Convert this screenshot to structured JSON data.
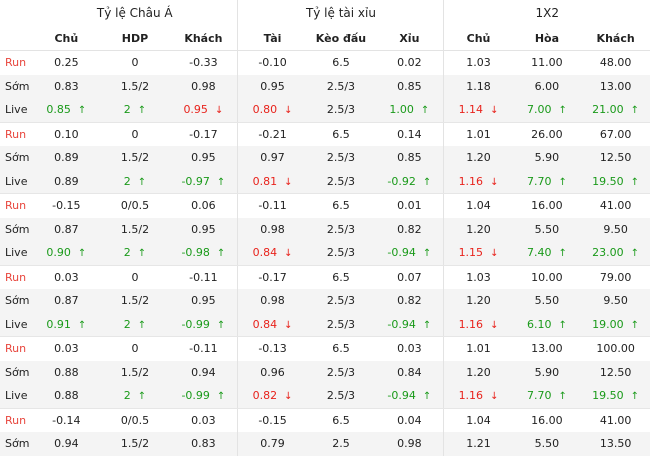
{
  "groups": [
    "Tỷ lệ Châu Á",
    "Tỷ lệ tài xỉu",
    "1X2"
  ],
  "columns": [
    "Chủ",
    "HDP",
    "Khách",
    "Tài",
    "Kèo đấu",
    "Xỉu",
    "Chủ",
    "Hòa",
    "Khách"
  ],
  "rows": [
    {
      "label": "Run",
      "type": "run",
      "cells": [
        {
          "v": "0.25"
        },
        {
          "v": "0"
        },
        {
          "v": "-0.33"
        },
        {
          "v": "-0.10"
        },
        {
          "v": "6.5"
        },
        {
          "v": "0.02"
        },
        {
          "v": "1.03"
        },
        {
          "v": "11.00"
        },
        {
          "v": "48.00"
        }
      ]
    },
    {
      "label": "Sớm",
      "type": "early",
      "cells": [
        {
          "v": "0.83"
        },
        {
          "v": "1.5/2"
        },
        {
          "v": "0.98"
        },
        {
          "v": "0.95"
        },
        {
          "v": "2.5/3"
        },
        {
          "v": "0.85"
        },
        {
          "v": "1.18"
        },
        {
          "v": "6.00"
        },
        {
          "v": "13.00"
        }
      ]
    },
    {
      "label": "Live",
      "type": "live",
      "cells": [
        {
          "v": "0.85",
          "t": "up"
        },
        {
          "v": "2",
          "t": "up"
        },
        {
          "v": "0.95",
          "t": "down"
        },
        {
          "v": "0.80",
          "t": "down"
        },
        {
          "v": "2.5/3"
        },
        {
          "v": "1.00",
          "t": "up"
        },
        {
          "v": "1.14",
          "t": "down"
        },
        {
          "v": "7.00",
          "t": "up"
        },
        {
          "v": "21.00",
          "t": "up"
        }
      ]
    },
    {
      "label": "Run",
      "type": "run",
      "cells": [
        {
          "v": "0.10"
        },
        {
          "v": "0"
        },
        {
          "v": "-0.17"
        },
        {
          "v": "-0.21"
        },
        {
          "v": "6.5"
        },
        {
          "v": "0.14"
        },
        {
          "v": "1.01"
        },
        {
          "v": "26.00"
        },
        {
          "v": "67.00"
        }
      ]
    },
    {
      "label": "Sớm",
      "type": "early",
      "cells": [
        {
          "v": "0.89"
        },
        {
          "v": "1.5/2"
        },
        {
          "v": "0.95"
        },
        {
          "v": "0.97"
        },
        {
          "v": "2.5/3"
        },
        {
          "v": "0.85"
        },
        {
          "v": "1.20"
        },
        {
          "v": "5.90"
        },
        {
          "v": "12.50"
        }
      ]
    },
    {
      "label": "Live",
      "type": "live",
      "cells": [
        {
          "v": "0.89"
        },
        {
          "v": "2",
          "t": "up"
        },
        {
          "v": "-0.97",
          "t": "up"
        },
        {
          "v": "0.81",
          "t": "down"
        },
        {
          "v": "2.5/3"
        },
        {
          "v": "-0.92",
          "t": "up"
        },
        {
          "v": "1.16",
          "t": "down"
        },
        {
          "v": "7.70",
          "t": "up"
        },
        {
          "v": "19.50",
          "t": "up"
        }
      ]
    },
    {
      "label": "Run",
      "type": "run",
      "cells": [
        {
          "v": "-0.15"
        },
        {
          "v": "0/0.5"
        },
        {
          "v": "0.06"
        },
        {
          "v": "-0.11"
        },
        {
          "v": "6.5"
        },
        {
          "v": "0.01"
        },
        {
          "v": "1.04"
        },
        {
          "v": "16.00"
        },
        {
          "v": "41.00"
        }
      ]
    },
    {
      "label": "Sớm",
      "type": "early",
      "cells": [
        {
          "v": "0.87"
        },
        {
          "v": "1.5/2"
        },
        {
          "v": "0.95"
        },
        {
          "v": "0.98"
        },
        {
          "v": "2.5/3"
        },
        {
          "v": "0.82"
        },
        {
          "v": "1.20"
        },
        {
          "v": "5.50"
        },
        {
          "v": "9.50"
        }
      ]
    },
    {
      "label": "Live",
      "type": "live",
      "cells": [
        {
          "v": "0.90",
          "t": "up"
        },
        {
          "v": "2",
          "t": "up"
        },
        {
          "v": "-0.98",
          "t": "up"
        },
        {
          "v": "0.84",
          "t": "down"
        },
        {
          "v": "2.5/3"
        },
        {
          "v": "-0.94",
          "t": "up"
        },
        {
          "v": "1.15",
          "t": "down"
        },
        {
          "v": "7.40",
          "t": "up"
        },
        {
          "v": "23.00",
          "t": "up"
        }
      ]
    },
    {
      "label": "Run",
      "type": "run",
      "cells": [
        {
          "v": "0.03"
        },
        {
          "v": "0"
        },
        {
          "v": "-0.11"
        },
        {
          "v": "-0.17"
        },
        {
          "v": "6.5"
        },
        {
          "v": "0.07"
        },
        {
          "v": "1.03"
        },
        {
          "v": "10.00"
        },
        {
          "v": "79.00"
        }
      ]
    },
    {
      "label": "Sớm",
      "type": "early",
      "cells": [
        {
          "v": "0.87"
        },
        {
          "v": "1.5/2"
        },
        {
          "v": "0.95"
        },
        {
          "v": "0.98"
        },
        {
          "v": "2.5/3"
        },
        {
          "v": "0.82"
        },
        {
          "v": "1.20"
        },
        {
          "v": "5.50"
        },
        {
          "v": "9.50"
        }
      ]
    },
    {
      "label": "Live",
      "type": "live",
      "cells": [
        {
          "v": "0.91",
          "t": "up"
        },
        {
          "v": "2",
          "t": "up"
        },
        {
          "v": "-0.99",
          "t": "up"
        },
        {
          "v": "0.84",
          "t": "down"
        },
        {
          "v": "2.5/3"
        },
        {
          "v": "-0.94",
          "t": "up"
        },
        {
          "v": "1.16",
          "t": "down"
        },
        {
          "v": "6.10",
          "t": "up"
        },
        {
          "v": "19.00",
          "t": "up"
        }
      ]
    },
    {
      "label": "Run",
      "type": "run",
      "cells": [
        {
          "v": "0.03"
        },
        {
          "v": "0"
        },
        {
          "v": "-0.11"
        },
        {
          "v": "-0.13"
        },
        {
          "v": "6.5"
        },
        {
          "v": "0.03"
        },
        {
          "v": "1.01"
        },
        {
          "v": "13.00"
        },
        {
          "v": "100.00"
        }
      ]
    },
    {
      "label": "Sớm",
      "type": "early",
      "cells": [
        {
          "v": "0.88"
        },
        {
          "v": "1.5/2"
        },
        {
          "v": "0.94"
        },
        {
          "v": "0.96"
        },
        {
          "v": "2.5/3"
        },
        {
          "v": "0.84"
        },
        {
          "v": "1.20"
        },
        {
          "v": "5.90"
        },
        {
          "v": "12.50"
        }
      ]
    },
    {
      "label": "Live",
      "type": "live",
      "cells": [
        {
          "v": "0.88"
        },
        {
          "v": "2",
          "t": "up"
        },
        {
          "v": "-0.99",
          "t": "up"
        },
        {
          "v": "0.82",
          "t": "down"
        },
        {
          "v": "2.5/3"
        },
        {
          "v": "-0.94",
          "t": "up"
        },
        {
          "v": "1.16",
          "t": "down"
        },
        {
          "v": "7.70",
          "t": "up"
        },
        {
          "v": "19.50",
          "t": "up"
        }
      ]
    },
    {
      "label": "Run",
      "type": "run",
      "cells": [
        {
          "v": "-0.14"
        },
        {
          "v": "0/0.5"
        },
        {
          "v": "0.03"
        },
        {
          "v": "-0.15"
        },
        {
          "v": "6.5"
        },
        {
          "v": "0.04"
        },
        {
          "v": "1.04"
        },
        {
          "v": "16.00"
        },
        {
          "v": "41.00"
        }
      ]
    },
    {
      "label": "Sớm",
      "type": "early",
      "cells": [
        {
          "v": "0.94"
        },
        {
          "v": "1.5/2"
        },
        {
          "v": "0.83"
        },
        {
          "v": "0.79"
        },
        {
          "v": "2.5"
        },
        {
          "v": "0.98"
        },
        {
          "v": "1.21"
        },
        {
          "v": "5.50"
        },
        {
          "v": "13.50"
        }
      ]
    }
  ],
  "trend_icons": {
    "up": "arrow-up-icon",
    "down": "arrow-down-icon"
  },
  "colors": {
    "up": "#1a9a1a",
    "down": "#e8231c",
    "run_label": "#e8473e",
    "shade": "#f4f4f4"
  }
}
